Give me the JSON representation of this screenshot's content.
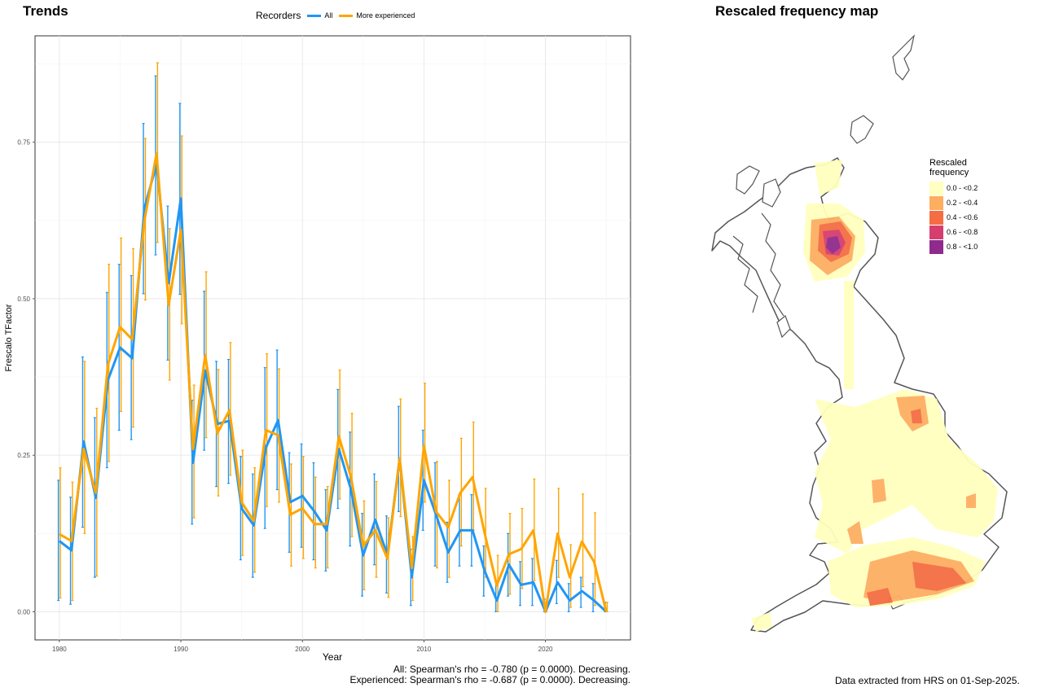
{
  "left_title": "Trends",
  "right_title": "Rescaled frequency map",
  "legend": {
    "title": "Recorders",
    "items": [
      {
        "label": "All",
        "color": "#2196F3"
      },
      {
        "label": "More experienced",
        "color": "#FFA500"
      }
    ]
  },
  "stats": {
    "line1": "All: Spearman's rho = -0.780 (p = 0.0000). Decreasing.",
    "line2": "Experienced: Spearman's rho = -0.687 (p = 0.0000). Decreasing."
  },
  "footer": "Data extracted from HRS on 01-Sep-2025.",
  "map_legend": {
    "title": "Rescaled\nfrequency",
    "items": [
      {
        "label": "0.0 - <0.2",
        "color": "#FFFFBF"
      },
      {
        "label": "0.2 - <0.4",
        "color": "#FDAE61"
      },
      {
        "label": "0.4 - <0.6",
        "color": "#F46D43"
      },
      {
        "label": "0.6 - <0.8",
        "color": "#D53E6F"
      },
      {
        "label": "0.8 - <1.0",
        "color": "#8E2B8C"
      }
    ]
  },
  "chart_data": {
    "type": "line",
    "title": "",
    "xlabel": "Year",
    "ylabel": "Frescalo TFactor",
    "xlim": [
      1978,
      2027
    ],
    "ylim": [
      -0.045,
      0.92
    ],
    "xticks": [
      1980,
      1990,
      2000,
      2010,
      2020
    ],
    "yticks": [
      0.0,
      0.25,
      0.5,
      0.75
    ],
    "ytick_labels": [
      "0.00",
      "0.25",
      "0.50",
      "0.75"
    ],
    "grid": true,
    "legend_position": "top",
    "series": [
      {
        "name": "All",
        "color": "#2196F3",
        "points": [
          [
            1980,
            0.113,
            0.018,
            0.21
          ],
          [
            1981,
            0.098,
            0.012,
            0.183
          ],
          [
            1982,
            0.272,
            0.135,
            0.407
          ],
          [
            1983,
            0.182,
            0.055,
            0.31
          ],
          [
            1984,
            0.37,
            0.23,
            0.51
          ],
          [
            1985,
            0.422,
            0.29,
            0.555
          ],
          [
            1986,
            0.405,
            0.275,
            0.537
          ],
          [
            1987,
            0.645,
            0.508,
            0.78
          ],
          [
            1988,
            0.715,
            0.57,
            0.856
          ],
          [
            1989,
            0.525,
            0.402,
            0.648
          ],
          [
            1990,
            0.66,
            0.507,
            0.812
          ],
          [
            1991,
            0.238,
            0.14,
            0.338
          ],
          [
            1992,
            0.385,
            0.258,
            0.512
          ],
          [
            1993,
            0.3,
            0.2,
            0.4
          ],
          [
            1994,
            0.305,
            0.205,
            0.403
          ],
          [
            1995,
            0.165,
            0.083,
            0.248
          ],
          [
            1996,
            0.138,
            0.055,
            0.22
          ],
          [
            1997,
            0.262,
            0.133,
            0.39
          ],
          [
            1998,
            0.306,
            0.195,
            0.418
          ],
          [
            1999,
            0.175,
            0.095,
            0.254
          ],
          [
            2000,
            0.185,
            0.103,
            0.268
          ],
          [
            2001,
            0.16,
            0.083,
            0.238
          ],
          [
            2002,
            0.13,
            0.065,
            0.195
          ],
          [
            2003,
            0.26,
            0.165,
            0.355
          ],
          [
            2004,
            0.195,
            0.105,
            0.287
          ],
          [
            2005,
            0.09,
            0.025,
            0.157
          ],
          [
            2006,
            0.147,
            0.075,
            0.22
          ],
          [
            2007,
            0.09,
            0.03,
            0.153
          ],
          [
            2008,
            0.245,
            0.16,
            0.328
          ],
          [
            2009,
            0.055,
            0.01,
            0.1
          ],
          [
            2010,
            0.21,
            0.13,
            0.29
          ],
          [
            2011,
            0.155,
            0.073,
            0.238
          ],
          [
            2012,
            0.095,
            0.047,
            0.143
          ],
          [
            2013,
            0.13,
            0.073,
            0.187
          ],
          [
            2014,
            0.13,
            0.073,
            0.187
          ],
          [
            2015,
            0.065,
            0.025,
            0.105
          ],
          [
            2016,
            0.018,
            0.0,
            0.05
          ],
          [
            2017,
            0.075,
            0.025,
            0.125
          ],
          [
            2018,
            0.043,
            0.01,
            0.08
          ],
          [
            2019,
            0.047,
            0.01,
            0.085
          ],
          [
            2020,
            0.0,
            0.0,
            0.02
          ],
          [
            2021,
            0.047,
            0.013,
            0.082
          ],
          [
            2022,
            0.018,
            0.0,
            0.045
          ],
          [
            2023,
            0.033,
            0.007,
            0.055
          ],
          [
            2024,
            0.018,
            0.0,
            0.045
          ],
          [
            2025,
            0.0,
            0.0,
            0.015
          ]
        ]
      },
      {
        "name": "More experienced",
        "color": "#FFA500",
        "points": [
          [
            1980,
            0.124,
            0.022,
            0.23
          ],
          [
            1981,
            0.113,
            0.018,
            0.207
          ],
          [
            1982,
            0.26,
            0.125,
            0.4
          ],
          [
            1983,
            0.19,
            0.057,
            0.325
          ],
          [
            1984,
            0.395,
            0.24,
            0.555
          ],
          [
            1985,
            0.455,
            0.32,
            0.597
          ],
          [
            1986,
            0.435,
            0.295,
            0.58
          ],
          [
            1987,
            0.625,
            0.498,
            0.756
          ],
          [
            1988,
            0.732,
            0.59,
            0.877
          ],
          [
            1989,
            0.49,
            0.37,
            0.612
          ],
          [
            1990,
            0.61,
            0.46,
            0.76
          ],
          [
            1991,
            0.26,
            0.15,
            0.362
          ],
          [
            1992,
            0.41,
            0.278,
            0.543
          ],
          [
            1993,
            0.285,
            0.185,
            0.387
          ],
          [
            1994,
            0.322,
            0.218,
            0.43
          ],
          [
            1995,
            0.175,
            0.09,
            0.258
          ],
          [
            1996,
            0.145,
            0.063,
            0.23
          ],
          [
            1997,
            0.29,
            0.168,
            0.412
          ],
          [
            1998,
            0.282,
            0.175,
            0.388
          ],
          [
            1999,
            0.155,
            0.073,
            0.236
          ],
          [
            2000,
            0.165,
            0.085,
            0.248
          ],
          [
            2001,
            0.14,
            0.07,
            0.215
          ],
          [
            2002,
            0.14,
            0.07,
            0.2
          ],
          [
            2003,
            0.28,
            0.18,
            0.386
          ],
          [
            2004,
            0.215,
            0.12,
            0.317
          ],
          [
            2005,
            0.105,
            0.035,
            0.177
          ],
          [
            2006,
            0.13,
            0.055,
            0.208
          ],
          [
            2007,
            0.085,
            0.023,
            0.15
          ],
          [
            2008,
            0.245,
            0.152,
            0.34
          ],
          [
            2009,
            0.07,
            0.018,
            0.12
          ],
          [
            2010,
            0.265,
            0.175,
            0.365
          ],
          [
            2011,
            0.16,
            0.07,
            0.24
          ],
          [
            2012,
            0.135,
            0.055,
            0.21
          ],
          [
            2013,
            0.19,
            0.105,
            0.277
          ],
          [
            2014,
            0.215,
            0.13,
            0.303
          ],
          [
            2015,
            0.125,
            0.055,
            0.197
          ],
          [
            2016,
            0.042,
            0.0,
            0.09
          ],
          [
            2017,
            0.092,
            0.028,
            0.157
          ],
          [
            2018,
            0.1,
            0.037,
            0.165
          ],
          [
            2019,
            0.13,
            0.05,
            0.212
          ],
          [
            2020,
            0.0,
            0.0,
            0.015
          ],
          [
            2021,
            0.125,
            0.055,
            0.197
          ],
          [
            2022,
            0.055,
            0.007,
            0.107
          ],
          [
            2023,
            0.112,
            0.04,
            0.188
          ],
          [
            2024,
            0.08,
            0.01,
            0.158
          ],
          [
            2025,
            0.0,
            0.0,
            0.015
          ]
        ]
      }
    ]
  }
}
